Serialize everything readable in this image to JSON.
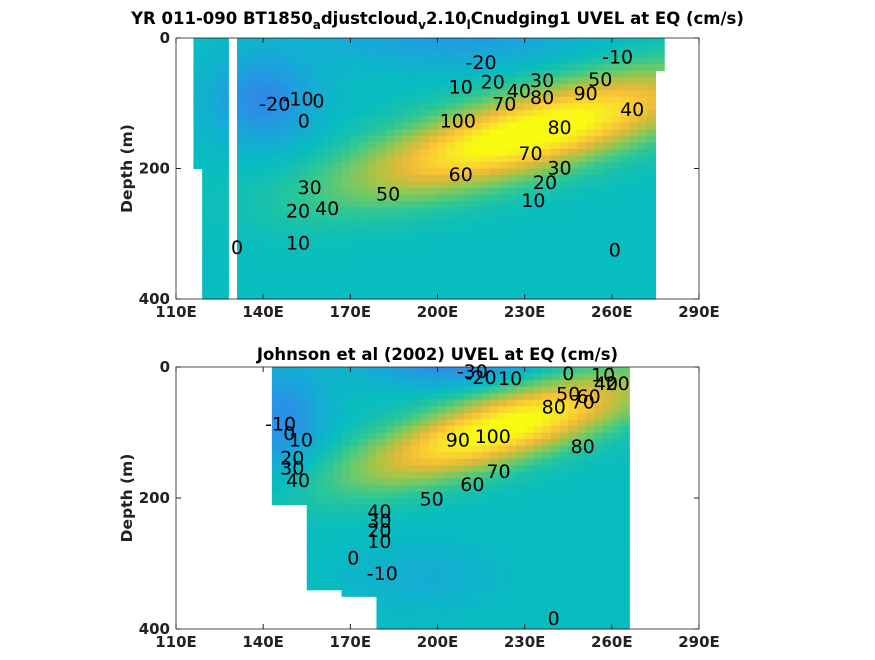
{
  "chart_data": [
    {
      "type": "heatmap",
      "title_parts": [
        "YR 011-090 BT1850",
        "a",
        "djustcloud",
        "v",
        "2.10",
        "l",
        "Cnudging1 UVEL at EQ (cm/s)"
      ],
      "ylabel": "Depth (m)",
      "xlim": [
        110,
        290
      ],
      "ylim": [
        0,
        400
      ],
      "y_reversed": true,
      "xticks": [
        "110E",
        "140E",
        "170E",
        "200E",
        "230E",
        "260E",
        "290E"
      ],
      "yticks": [
        "0",
        "200",
        "400"
      ],
      "contour_labels": [
        {
          "text": "-20",
          "x": 215,
          "y": 38
        },
        {
          "text": "-10",
          "x": 262,
          "y": 30
        },
        {
          "text": "-20",
          "x": 144,
          "y": 102
        },
        {
          "text": "-10",
          "x": 152,
          "y": 94
        },
        {
          "text": "0",
          "x": 159,
          "y": 97
        },
        {
          "text": "0",
          "x": 154,
          "y": 128
        },
        {
          "text": "10",
          "x": 208,
          "y": 76
        },
        {
          "text": "20",
          "x": 219,
          "y": 68
        },
        {
          "text": "30",
          "x": 236,
          "y": 66
        },
        {
          "text": "40",
          "x": 228,
          "y": 82
        },
        {
          "text": "50",
          "x": 256,
          "y": 64
        },
        {
          "text": "70",
          "x": 223,
          "y": 102
        },
        {
          "text": "80",
          "x": 236,
          "y": 92
        },
        {
          "text": "90",
          "x": 251,
          "y": 86
        },
        {
          "text": "100",
          "x": 207,
          "y": 128
        },
        {
          "text": "80",
          "x": 242,
          "y": 138
        },
        {
          "text": "70",
          "x": 232,
          "y": 178
        },
        {
          "text": "60",
          "x": 208,
          "y": 210
        },
        {
          "text": "50",
          "x": 183,
          "y": 240
        },
        {
          "text": "40",
          "x": 162,
          "y": 262
        },
        {
          "text": "30",
          "x": 156,
          "y": 230
        },
        {
          "text": "20",
          "x": 152,
          "y": 266
        },
        {
          "text": "10",
          "x": 152,
          "y": 315
        },
        {
          "text": "30",
          "x": 242,
          "y": 200
        },
        {
          "text": "20",
          "x": 237,
          "y": 222
        },
        {
          "text": "10",
          "x": 233,
          "y": 250
        },
        {
          "text": "40",
          "x": 267,
          "y": 110
        },
        {
          "text": "0",
          "x": 131,
          "y": 322
        },
        {
          "text": "0",
          "x": 261,
          "y": 326
        }
      ]
    },
    {
      "type": "heatmap",
      "title": "Johnson et al (2002) UVEL at EQ (cm/s)",
      "ylabel": "Depth (m)",
      "xlim": [
        110,
        290
      ],
      "ylim": [
        0,
        400
      ],
      "y_reversed": true,
      "xticks": [
        "110E",
        "140E",
        "170E",
        "200E",
        "230E",
        "260E",
        "290E"
      ],
      "yticks": [
        "0",
        "200",
        "400"
      ],
      "contour_labels": [
        {
          "text": "-30",
          "x": 212,
          "y": 8
        },
        {
          "text": "-20",
          "x": 215,
          "y": 17
        },
        {
          "text": "10",
          "x": 225,
          "y": 18
        },
        {
          "text": "0",
          "x": 245,
          "y": 11
        },
        {
          "text": "10",
          "x": 257,
          "y": 13
        },
        {
          "text": "20",
          "x": 262,
          "y": 26
        },
        {
          "text": "40",
          "x": 258,
          "y": 26
        },
        {
          "text": "50",
          "x": 245,
          "y": 42
        },
        {
          "text": "60",
          "x": 252,
          "y": 46
        },
        {
          "text": "70",
          "x": 250,
          "y": 54
        },
        {
          "text": "80",
          "x": 240,
          "y": 62
        },
        {
          "text": "-10",
          "x": 146,
          "y": 88
        },
        {
          "text": "0",
          "x": 149,
          "y": 102
        },
        {
          "text": "10",
          "x": 153,
          "y": 112
        },
        {
          "text": "20",
          "x": 150,
          "y": 140
        },
        {
          "text": "30",
          "x": 150,
          "y": 155
        },
        {
          "text": "40",
          "x": 152,
          "y": 174
        },
        {
          "text": "90",
          "x": 207,
          "y": 112
        },
        {
          "text": "100",
          "x": 219,
          "y": 107
        },
        {
          "text": "80",
          "x": 250,
          "y": 122
        },
        {
          "text": "70",
          "x": 221,
          "y": 160
        },
        {
          "text": "60",
          "x": 212,
          "y": 180
        },
        {
          "text": "50",
          "x": 198,
          "y": 202
        },
        {
          "text": "40",
          "x": 180,
          "y": 221
        },
        {
          "text": "30",
          "x": 180,
          "y": 236
        },
        {
          "text": "20",
          "x": 180,
          "y": 250
        },
        {
          "text": "10",
          "x": 180,
          "y": 267
        },
        {
          "text": "0",
          "x": 171,
          "y": 292
        },
        {
          "text": "-10",
          "x": 181,
          "y": 316
        },
        {
          "text": "0",
          "x": 240,
          "y": 385
        }
      ]
    }
  ],
  "colors": {
    "cmap": [
      "#3d6cd9",
      "#2c8ee6",
      "#17a9d8",
      "#08bdbf",
      "#2dc795",
      "#6cc96a",
      "#aac445",
      "#e0b93a",
      "#fbc734",
      "#f7e22a",
      "#f9fb0e"
    ]
  }
}
